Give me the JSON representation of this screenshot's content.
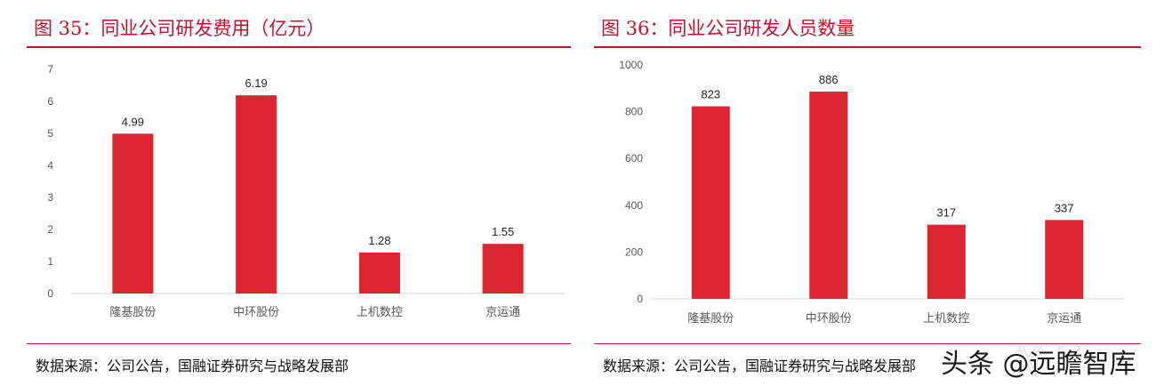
{
  "panels": [
    {
      "title": "图 35：同业公司研发费用（亿元）",
      "source": "数据来源：公司公告，国融证券研究与战略发展部"
    },
    {
      "title": "图 36：同业公司研发人员数量",
      "source": "数据来源：公司公告，国融证券研究与战略发展部"
    }
  ],
  "watermark": {
    "text": "头条 @远瞻智库"
  },
  "colors": {
    "bar": "#dc2530",
    "accent": "#c8102e",
    "tick": "#595959",
    "axis": "#d9d9d9"
  },
  "chart_data": [
    {
      "type": "bar",
      "title": "图 35：同业公司研发费用（亿元）",
      "categories": [
        "隆基股份",
        "中环股份",
        "上机数控",
        "京运通"
      ],
      "values": [
        4.99,
        6.19,
        1.28,
        1.55
      ],
      "value_labels": [
        "4.99",
        "6.19",
        "1.28",
        "1.55"
      ],
      "yticks": [
        "0",
        "1",
        "2",
        "3",
        "4",
        "5",
        "6",
        "7"
      ],
      "ylim": [
        0,
        7
      ],
      "grid": false,
      "xlabel": "",
      "ylabel": ""
    },
    {
      "type": "bar",
      "title": "图 36：同业公司研发人员数量",
      "categories": [
        "隆基股份",
        "中环股份",
        "上机数控",
        "京运通"
      ],
      "values": [
        823,
        886,
        317,
        337
      ],
      "value_labels": [
        "823",
        "886",
        "317",
        "337"
      ],
      "yticks": [
        "0",
        "200",
        "400",
        "600",
        "800",
        "1000"
      ],
      "ylim": [
        0,
        1000
      ],
      "grid": false,
      "xlabel": "",
      "ylabel": ""
    }
  ]
}
